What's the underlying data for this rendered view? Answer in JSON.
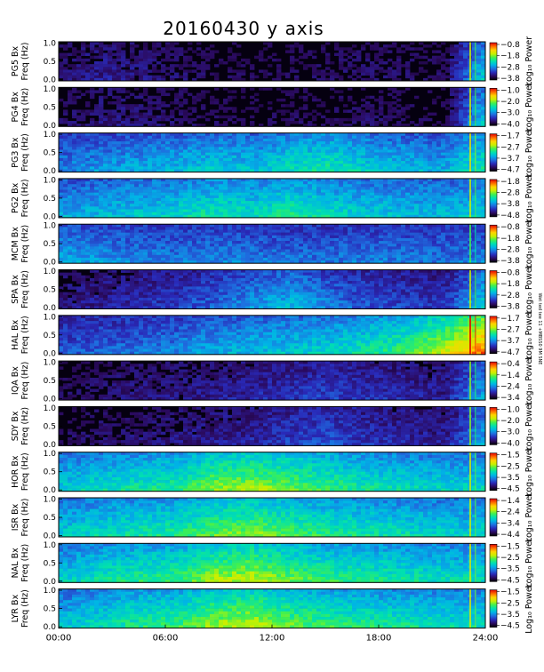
{
  "chart_data": {
    "type": "heatmap",
    "title": "20160430  y axis",
    "x_ticks": [
      "00:00",
      "06:00",
      "12:00",
      "18:00",
      "24:00"
    ],
    "x_range_hours": [
      0,
      24
    ],
    "y_ticks": [
      "0.0",
      "0.5",
      "1.0"
    ],
    "y_range_hz": [
      0,
      1.0
    ],
    "freq_label": "Freq (Hz)",
    "colorbar_label": "Log₁₀ Power",
    "side_note": "Wet ted tee 11 +MBSS0 9M SNE",
    "colormap": [
      "#000000",
      "#2a0a5e",
      "#2929b8",
      "#1e6fe0",
      "#00b4e6",
      "#00e0b0",
      "#40f050",
      "#c8f000",
      "#ffd400",
      "#ff6a00",
      "#e00000"
    ],
    "panels": [
      {
        "station": "PG5",
        "axis": "Bx",
        "cbar": [
          -0.8,
          -1.8,
          -2.8,
          -3.8
        ],
        "bright": [
          0.08,
          0.12,
          0.1,
          0.08,
          0.06,
          0.05,
          0.06,
          0.07,
          0.08,
          0.07,
          0.06,
          0.35
        ]
      },
      {
        "station": "PG4",
        "axis": "Bx",
        "cbar": [
          -1.0,
          -2.0,
          -3.0,
          -4.0
        ],
        "bright": [
          0.06,
          0.1,
          0.09,
          0.07,
          0.06,
          0.05,
          0.06,
          0.06,
          0.07,
          0.06,
          0.05,
          0.35
        ]
      },
      {
        "station": "PG3",
        "axis": "Bx",
        "cbar": [
          -1.7,
          -2.7,
          -3.7,
          -4.7
        ],
        "bright": [
          0.25,
          0.28,
          0.3,
          0.32,
          0.35,
          0.33,
          0.38,
          0.4,
          0.35,
          0.32,
          0.3,
          0.4
        ]
      },
      {
        "station": "PG2",
        "axis": "Bx",
        "cbar": [
          -1.8,
          -2.8,
          -3.8,
          -4.8
        ],
        "bright": [
          0.3,
          0.32,
          0.34,
          0.36,
          0.4,
          0.38,
          0.42,
          0.38,
          0.35,
          0.33,
          0.32,
          0.35
        ]
      },
      {
        "station": "MCM",
        "axis": "Bx",
        "cbar": [
          -0.8,
          -1.8,
          -2.8,
          -3.8
        ],
        "bright": [
          0.3,
          0.28,
          0.26,
          0.25,
          0.26,
          0.25,
          0.24,
          0.24,
          0.25,
          0.25,
          0.24,
          0.25
        ]
      },
      {
        "station": "SPA",
        "axis": "Bx",
        "cbar": [
          -0.8,
          -1.8,
          -2.8,
          -3.8
        ],
        "bright": [
          0.1,
          0.12,
          0.15,
          0.18,
          0.22,
          0.28,
          0.32,
          0.25,
          0.2,
          0.18,
          0.16,
          0.35
        ]
      },
      {
        "station": "HAL",
        "axis": "Bx",
        "cbar": [
          -1.7,
          -2.7,
          -3.7,
          -4.7
        ],
        "bright": [
          0.2,
          0.22,
          0.24,
          0.26,
          0.3,
          0.32,
          0.34,
          0.36,
          0.4,
          0.45,
          0.55,
          0.7
        ]
      },
      {
        "station": "IQA",
        "axis": "Bx",
        "cbar": [
          -0.4,
          -1.4,
          -2.4,
          -3.4
        ],
        "bright": [
          0.06,
          0.08,
          0.1,
          0.1,
          0.12,
          0.14,
          0.16,
          0.18,
          0.16,
          0.14,
          0.12,
          0.3
        ]
      },
      {
        "station": "SDY",
        "axis": "Bx",
        "cbar": [
          -1.0,
          -2.0,
          -3.0,
          -4.0
        ],
        "bright": [
          0.06,
          0.08,
          0.09,
          0.1,
          0.12,
          0.14,
          0.18,
          0.2,
          0.16,
          0.14,
          0.12,
          0.3
        ]
      },
      {
        "station": "HOR",
        "axis": "Bx",
        "cbar": [
          -1.5,
          -2.5,
          -3.5,
          -4.5
        ],
        "bright": [
          0.35,
          0.38,
          0.4,
          0.42,
          0.5,
          0.52,
          0.48,
          0.44,
          0.4,
          0.38,
          0.36,
          0.36
        ]
      },
      {
        "station": "ISR",
        "axis": "Bx",
        "cbar": [
          -1.4,
          -2.4,
          -3.4,
          -4.4
        ],
        "bright": [
          0.35,
          0.38,
          0.4,
          0.42,
          0.48,
          0.5,
          0.46,
          0.42,
          0.4,
          0.38,
          0.36,
          0.36
        ]
      },
      {
        "station": "NAL",
        "axis": "Bx",
        "cbar": [
          -1.5,
          -2.5,
          -3.5,
          -4.5
        ],
        "bright": [
          0.35,
          0.4,
          0.42,
          0.44,
          0.52,
          0.54,
          0.48,
          0.44,
          0.42,
          0.4,
          0.38,
          0.38
        ]
      },
      {
        "station": "LYR",
        "axis": "Bx",
        "cbar": [
          -1.5,
          -2.5,
          -3.5,
          -4.5
        ],
        "bright": [
          0.34,
          0.38,
          0.42,
          0.44,
          0.52,
          0.54,
          0.48,
          0.44,
          0.42,
          0.4,
          0.38,
          0.38
        ]
      }
    ]
  }
}
